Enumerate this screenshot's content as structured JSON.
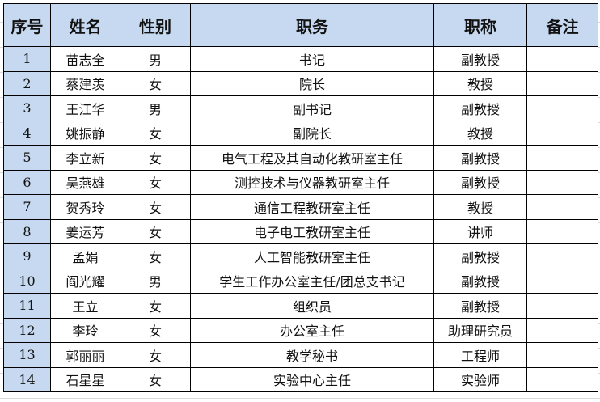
{
  "table": {
    "headers": [
      "序号",
      "姓名",
      "性别",
      "职务",
      "职称",
      "备注"
    ],
    "rows": [
      [
        "1",
        "苗志全",
        "男",
        "书记",
        "副教授",
        ""
      ],
      [
        "2",
        "蔡建羡",
        "女",
        "院长",
        "教授",
        ""
      ],
      [
        "3",
        "王江华",
        "男",
        "副书记",
        "副教授",
        ""
      ],
      [
        "4",
        "姚振静",
        "女",
        "副院长",
        "教授",
        ""
      ],
      [
        "5",
        "李立新",
        "女",
        "电气工程及其自动化教研室主任",
        "副教授",
        ""
      ],
      [
        "6",
        "吴燕雄",
        "女",
        "测控技术与仪器教研室主任",
        "副教授",
        ""
      ],
      [
        "7",
        "贺秀玲",
        "女",
        "通信工程教研室主任",
        "教授",
        ""
      ],
      [
        "8",
        "姜运芳",
        "女",
        "电子电工教研室主任",
        "讲师",
        ""
      ],
      [
        "9",
        "孟娟",
        "女",
        "人工智能教研室主任",
        "副教授",
        ""
      ],
      [
        "10",
        "阎光耀",
        "男",
        "学生工作办公室主任/团总支书记",
        "副教授",
        ""
      ],
      [
        "11",
        "王立",
        "女",
        "组织员",
        "副教授",
        ""
      ],
      [
        "12",
        "李玲",
        "女",
        "办公室主任",
        "助理研究员",
        ""
      ],
      [
        "13",
        "郭丽丽",
        "女",
        "教学秘书",
        "工程师",
        ""
      ],
      [
        "14",
        "石星星",
        "女",
        "实验中心主任",
        "实验师",
        ""
      ]
    ]
  },
  "colors": {
    "header_bg": "#c6d9f0"
  }
}
